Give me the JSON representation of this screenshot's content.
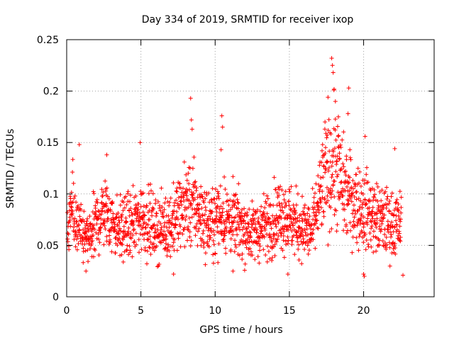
{
  "chart_data": {
    "type": "scatter",
    "title": "Day 334 of 2019, SRMTID for receiver ixop",
    "xlabel": "GPS time / hours",
    "ylabel": "SRMTID / TECUs",
    "xlim": [
      0,
      24.75
    ],
    "ylim": [
      0,
      0.25
    ],
    "xticks": [
      0,
      5,
      10,
      15,
      20
    ],
    "xtick_labels": [
      "0",
      "5",
      "10",
      "15",
      "20"
    ],
    "yticks": [
      0,
      0.05,
      0.1,
      0.15,
      0.2,
      0.25
    ],
    "ytick_labels": [
      "0",
      "0.05",
      "0.1",
      "0.15",
      "0.2",
      "0.25"
    ],
    "grid": true,
    "marker": "+",
    "color": "#ff0000",
    "series": [
      {
        "name": "SRMTID",
        "x_start": 0.05,
        "x_step": 0.0125,
        "count": 1800,
        "profile": [
          {
            "x": 0.0,
            "y": 0.055
          },
          {
            "x": 0.3,
            "y": 0.085
          },
          {
            "x": 1.0,
            "y": 0.06
          },
          {
            "x": 1.5,
            "y": 0.055
          },
          {
            "x": 2.5,
            "y": 0.085
          },
          {
            "x": 3.5,
            "y": 0.065
          },
          {
            "x": 4.5,
            "y": 0.07
          },
          {
            "x": 5.0,
            "y": 0.08
          },
          {
            "x": 6.0,
            "y": 0.065
          },
          {
            "x": 7.0,
            "y": 0.07
          },
          {
            "x": 8.0,
            "y": 0.09
          },
          {
            "x": 8.5,
            "y": 0.09
          },
          {
            "x": 9.5,
            "y": 0.07
          },
          {
            "x": 10.5,
            "y": 0.08
          },
          {
            "x": 11.5,
            "y": 0.07
          },
          {
            "x": 12.5,
            "y": 0.062
          },
          {
            "x": 13.5,
            "y": 0.07
          },
          {
            "x": 14.5,
            "y": 0.082
          },
          {
            "x": 15.5,
            "y": 0.07
          },
          {
            "x": 16.5,
            "y": 0.062
          },
          {
            "x": 17.3,
            "y": 0.11
          },
          {
            "x": 18.0,
            "y": 0.13
          },
          {
            "x": 18.8,
            "y": 0.1
          },
          {
            "x": 20.0,
            "y": 0.085
          },
          {
            "x": 21.0,
            "y": 0.075
          },
          {
            "x": 22.0,
            "y": 0.07
          },
          {
            "x": 22.8,
            "y": 0.07
          }
        ],
        "outliers": [
          {
            "x": 0.85,
            "y": 0.148
          },
          {
            "x": 2.7,
            "y": 0.138
          },
          {
            "x": 4.95,
            "y": 0.15
          },
          {
            "x": 8.35,
            "y": 0.193
          },
          {
            "x": 8.4,
            "y": 0.172
          },
          {
            "x": 8.45,
            "y": 0.163
          },
          {
            "x": 10.45,
            "y": 0.176
          },
          {
            "x": 10.5,
            "y": 0.165
          },
          {
            "x": 10.4,
            "y": 0.143
          },
          {
            "x": 17.85,
            "y": 0.232
          },
          {
            "x": 17.9,
            "y": 0.225
          },
          {
            "x": 17.95,
            "y": 0.218
          },
          {
            "x": 18.0,
            "y": 0.201
          },
          {
            "x": 17.6,
            "y": 0.194
          },
          {
            "x": 18.1,
            "y": 0.19
          },
          {
            "x": 17.4,
            "y": 0.17
          },
          {
            "x": 18.3,
            "y": 0.175
          },
          {
            "x": 19.0,
            "y": 0.203
          },
          {
            "x": 18.95,
            "y": 0.178
          },
          {
            "x": 20.1,
            "y": 0.156
          },
          {
            "x": 20.0,
            "y": 0.022
          },
          {
            "x": 20.05,
            "y": 0.02
          },
          {
            "x": 7.2,
            "y": 0.022
          },
          {
            "x": 14.9,
            "y": 0.022
          },
          {
            "x": 22.65,
            "y": 0.021
          },
          {
            "x": 22.1,
            "y": 0.144
          },
          {
            "x": 11.2,
            "y": 0.025
          },
          {
            "x": 1.3,
            "y": 0.025
          }
        ]
      }
    ]
  }
}
